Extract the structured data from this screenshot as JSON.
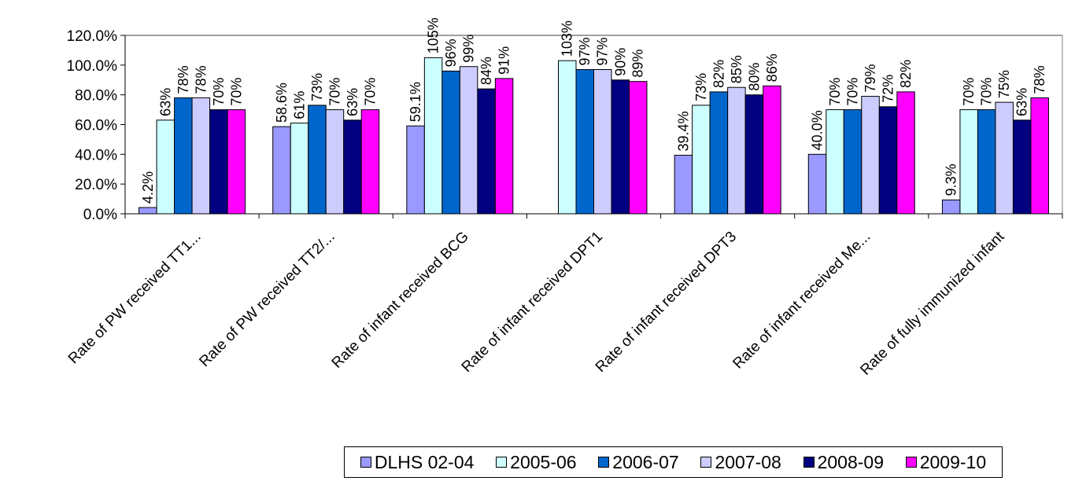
{
  "chart_data": {
    "type": "bar",
    "categories": [
      "Rate of PW received TT1...",
      "Rate of PW received TT2/...",
      "Rate of infant received BCG",
      "Rate of infant received DPT1",
      "Rate of infant received DPT3",
      "Rate of infant received Me...",
      "Rate of fully immunized infant"
    ],
    "series": [
      {
        "name": "DLHS 02-04",
        "color": "#9999FF",
        "values": [
          4.2,
          58.6,
          59.1,
          null,
          39.4,
          40.0,
          9.3
        ],
        "labels": [
          "4.2%",
          "58.6%",
          "59.1%",
          "",
          "39.4%",
          "40.0%",
          "9.3%"
        ]
      },
      {
        "name": "2005-06",
        "color": "#CCFFFF",
        "values": [
          63,
          61,
          105,
          103,
          73,
          70,
          70
        ],
        "labels": [
          "63%",
          "61%",
          "105%",
          "103%",
          "73%",
          "70%",
          "70%"
        ]
      },
      {
        "name": "2006-07",
        "color": "#0066CC",
        "values": [
          78,
          73,
          96,
          97,
          82,
          70,
          70
        ],
        "labels": [
          "78%",
          "73%",
          "96%",
          "97%",
          "82%",
          "70%",
          "70%"
        ]
      },
      {
        "name": "2007-08",
        "color": "#CCCCFF",
        "values": [
          78,
          70,
          99,
          97,
          85,
          79,
          75
        ],
        "labels": [
          "78%",
          "70%",
          "99%",
          "97%",
          "85%",
          "79%",
          "75%"
        ]
      },
      {
        "name": "2008-09",
        "color": "#000080",
        "values": [
          70,
          63,
          84,
          90,
          80,
          72,
          63
        ],
        "labels": [
          "70%",
          "63%",
          "84%",
          "90%",
          "80%",
          "72%",
          "63%"
        ]
      },
      {
        "name": "2009-10",
        "color": "#FF00FF",
        "values": [
          70,
          70,
          91,
          89,
          86,
          82,
          78
        ],
        "labels": [
          "70%",
          "70%",
          "91%",
          "89%",
          "86%",
          "82%",
          "78%"
        ]
      }
    ],
    "ylim": [
      0,
      120
    ],
    "yticks": [
      "0.0%",
      "20.0%",
      "40.0%",
      "60.0%",
      "80.0%",
      "100.0%",
      "120.0%"
    ],
    "grid": false,
    "legend_position": "bottom"
  }
}
